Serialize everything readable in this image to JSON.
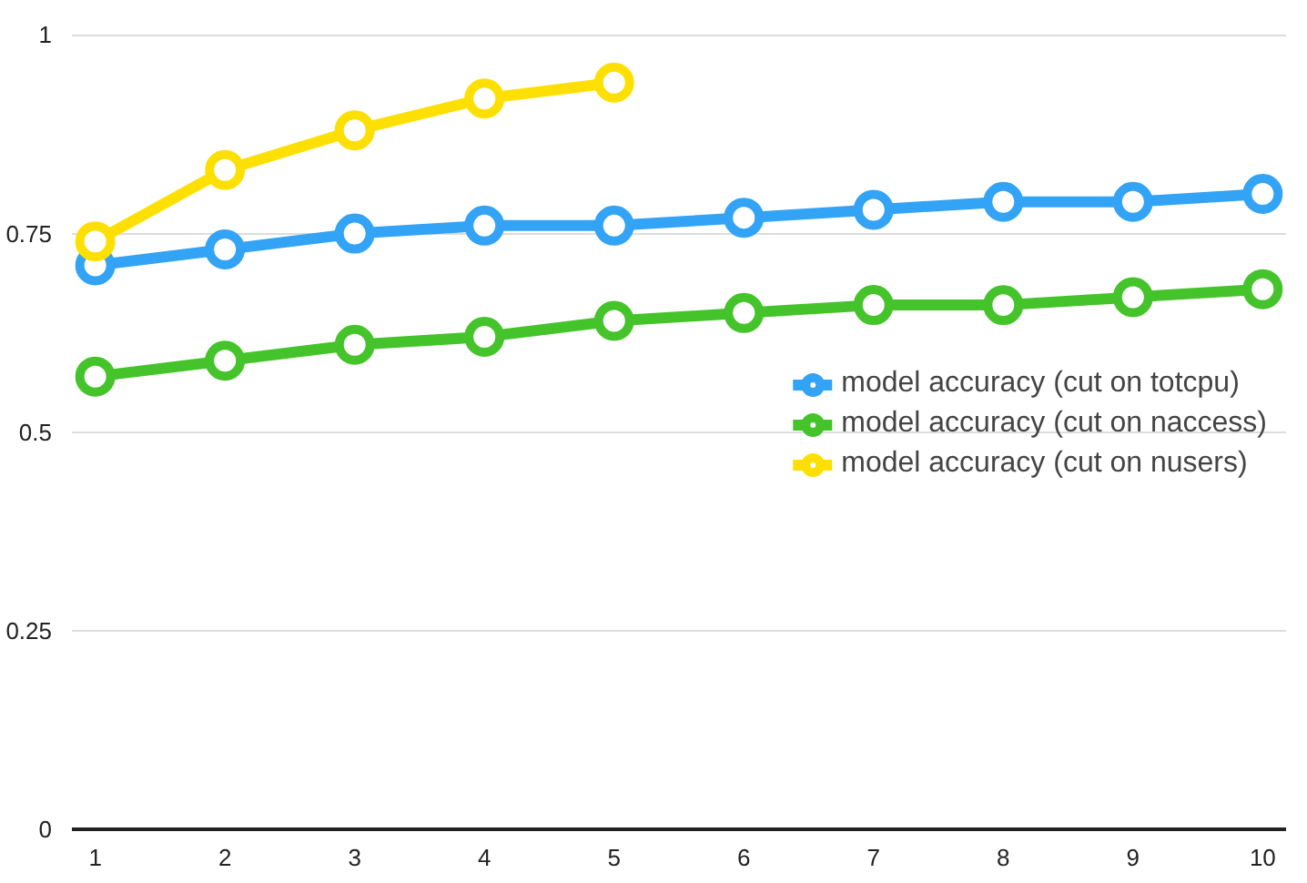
{
  "chart_data": {
    "type": "line",
    "x": [
      1,
      2,
      3,
      4,
      5,
      6,
      7,
      8,
      9,
      10
    ],
    "xlim": [
      0.82,
      10.18
    ],
    "xticks": [
      1,
      2,
      3,
      4,
      5,
      6,
      7,
      8,
      9,
      10
    ],
    "ylim": [
      0,
      1
    ],
    "yticks": [
      0,
      0.25,
      0.5,
      0.75,
      1
    ],
    "grid": "y",
    "legend": "right",
    "marker": "circle",
    "line_style": "solid",
    "series": [
      {
        "name": "model accuracy (cut on totcpu)",
        "color": "#33a3f5",
        "values": [
          0.71,
          0.73,
          0.75,
          0.76,
          0.76,
          0.77,
          0.78,
          0.79,
          0.79,
          0.8
        ]
      },
      {
        "name": "model accuracy (cut on naccess)",
        "color": "#44c42a",
        "values": [
          0.57,
          0.59,
          0.61,
          0.62,
          0.64,
          0.65,
          0.66,
          0.66,
          0.67,
          0.68
        ]
      },
      {
        "name": "model accuracy (cut on nusers)",
        "color": "#fde001",
        "x": [
          1,
          2,
          3,
          4,
          5
        ],
        "values": [
          0.74,
          0.83,
          0.88,
          0.92,
          0.94
        ]
      }
    ]
  }
}
